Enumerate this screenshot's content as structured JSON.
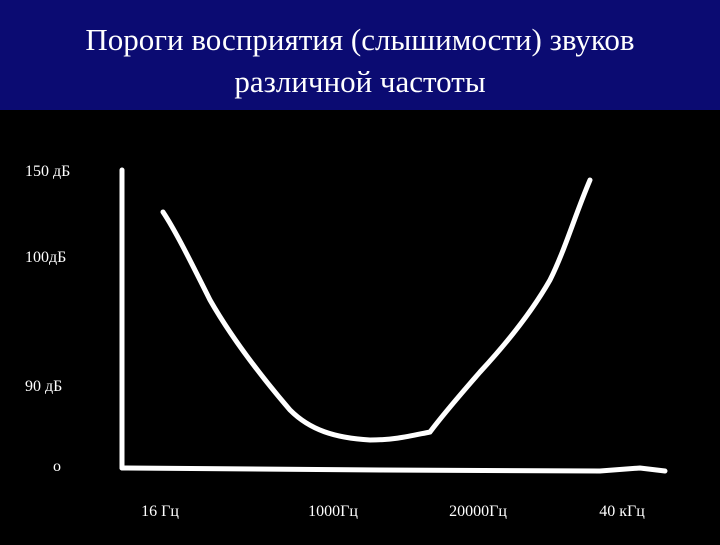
{
  "header": {
    "title_lines": [
      "Пороги восприятия (слышимости) звуков",
      "различной частоты"
    ]
  },
  "y_axis_labels": [
    "150 дБ",
    "100дБ",
    "90 дБ",
    "o"
  ],
  "x_axis_labels": [
    "16 Гц",
    "1000Гц",
    "20000Гц",
    "40 кГц"
  ]
}
